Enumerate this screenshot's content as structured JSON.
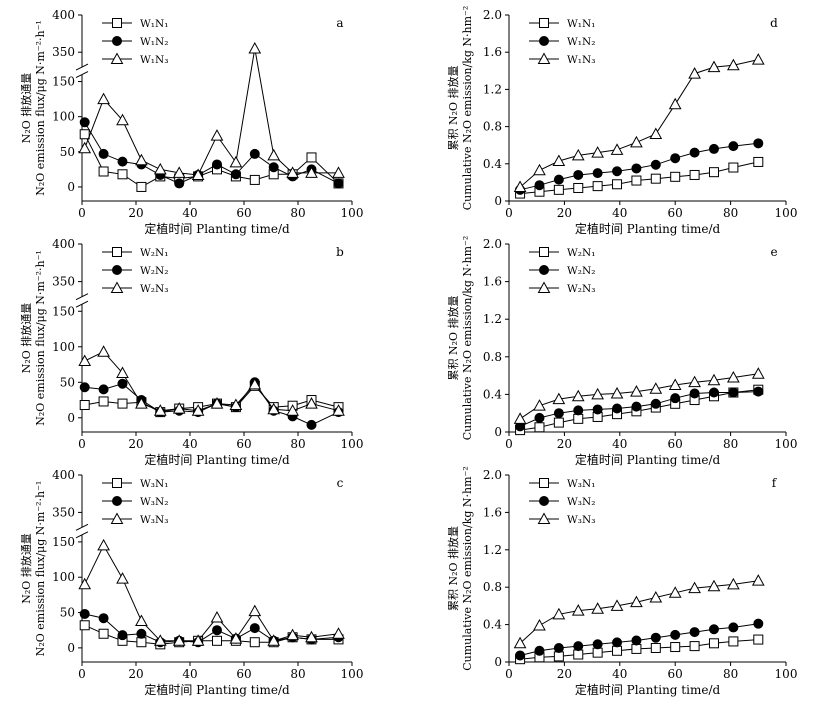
{
  "xlabel": "定植时间 Planting time/d",
  "chart_data": [
    {
      "id": "a",
      "type": "line",
      "tag": "a",
      "ylabel": "N₂O 排放通量",
      "ylabel2": "N₂O emission flux/μg N·m⁻²·h⁻¹",
      "xlim": [
        0,
        100
      ],
      "xticks": [
        0,
        20,
        40,
        60,
        80,
        100
      ],
      "yticks_low": [
        0,
        50,
        100,
        150
      ],
      "yticks_high": [
        350,
        400
      ],
      "broken_axis": true,
      "series": [
        {
          "name": "W₁N₁",
          "marker": "square",
          "x": [
            1,
            8,
            15,
            22,
            29,
            36,
            43,
            50,
            57,
            64,
            71,
            78,
            85,
            95
          ],
          "y": [
            75,
            22,
            18,
            0,
            15,
            12,
            15,
            25,
            15,
            10,
            18,
            18,
            42,
            5
          ]
        },
        {
          "name": "W₁N₂",
          "marker": "circle",
          "x": [
            1,
            8,
            15,
            22,
            29,
            36,
            43,
            50,
            57,
            64,
            71,
            78,
            85,
            95
          ],
          "y": [
            92,
            47,
            36,
            32,
            17,
            5,
            17,
            32,
            18,
            47,
            28,
            15,
            25,
            5
          ]
        },
        {
          "name": "W₁N₃",
          "marker": "triangle",
          "x": [
            1,
            8,
            15,
            22,
            29,
            36,
            43,
            50,
            57,
            64,
            71,
            78,
            85,
            95
          ],
          "y": [
            55,
            125,
            95,
            38,
            25,
            20,
            17,
            73,
            35,
            355,
            45,
            20,
            20,
            20
          ]
        }
      ]
    },
    {
      "id": "b",
      "type": "line",
      "tag": "b",
      "ylabel": "N₂O 排放通量",
      "ylabel2": "N₂O emission flux/μg N·m⁻²·h⁻¹",
      "xlim": [
        0,
        100
      ],
      "xticks": [
        0,
        20,
        40,
        60,
        80,
        100
      ],
      "yticks_low": [
        0,
        50,
        100,
        150
      ],
      "yticks_high": [
        350,
        400
      ],
      "broken_axis": true,
      "series": [
        {
          "name": "W₂N₁",
          "marker": "square",
          "x": [
            1,
            8,
            15,
            22,
            29,
            36,
            43,
            50,
            57,
            64,
            71,
            78,
            85,
            95
          ],
          "y": [
            18,
            23,
            20,
            22,
            8,
            13,
            15,
            20,
            15,
            45,
            15,
            17,
            25,
            15
          ]
        },
        {
          "name": "W₂N₂",
          "marker": "circle",
          "x": [
            1,
            8,
            15,
            22,
            29,
            36,
            43,
            50,
            57,
            64,
            71,
            78,
            85,
            95
          ],
          "y": [
            43,
            40,
            48,
            25,
            8,
            10,
            8,
            20,
            15,
            50,
            10,
            2,
            -10,
            8
          ]
        },
        {
          "name": "W₂N₃",
          "marker": "triangle",
          "x": [
            1,
            8,
            15,
            22,
            29,
            36,
            43,
            50,
            57,
            64,
            71,
            78,
            85,
            95
          ],
          "y": [
            80,
            93,
            63,
            20,
            10,
            13,
            10,
            20,
            18,
            47,
            12,
            10,
            20,
            10
          ]
        }
      ]
    },
    {
      "id": "c",
      "type": "line",
      "tag": "c",
      "ylabel": "N₂O 排放通量",
      "ylabel2": "N₂O emission flux/μg N·m⁻²·h⁻¹",
      "xlim": [
        0,
        100
      ],
      "xticks": [
        0,
        20,
        40,
        60,
        80,
        100
      ],
      "yticks_low": [
        0,
        50,
        100,
        150
      ],
      "yticks_high": [
        350,
        400
      ],
      "broken_axis": true,
      "series": [
        {
          "name": "W₃N₁",
          "marker": "square",
          "x": [
            1,
            8,
            15,
            22,
            29,
            36,
            43,
            50,
            57,
            64,
            71,
            78,
            85,
            95
          ],
          "y": [
            32,
            20,
            10,
            8,
            5,
            8,
            10,
            10,
            10,
            8,
            8,
            15,
            12,
            12
          ]
        },
        {
          "name": "W₃N₂",
          "marker": "circle",
          "x": [
            1,
            8,
            15,
            22,
            29,
            36,
            43,
            50,
            57,
            64,
            71,
            78,
            85,
            95
          ],
          "y": [
            48,
            42,
            18,
            20,
            8,
            10,
            8,
            25,
            13,
            28,
            10,
            15,
            12,
            15
          ]
        },
        {
          "name": "W₃N₃",
          "marker": "triangle",
          "x": [
            1,
            8,
            15,
            22,
            29,
            36,
            43,
            50,
            57,
            64,
            71,
            78,
            85,
            95
          ],
          "y": [
            90,
            145,
            98,
            38,
            10,
            10,
            10,
            43,
            13,
            52,
            10,
            18,
            15,
            20
          ]
        }
      ]
    },
    {
      "id": "d",
      "type": "line",
      "tag": "d",
      "ylabel": "累积 N₂O 排放量",
      "ylabel2": "Cumulative N₂O emission/kg N·hm⁻²",
      "xlim": [
        0,
        100
      ],
      "xticks": [
        0,
        20,
        40,
        60,
        80,
        100
      ],
      "ylim": [
        0,
        2.0
      ],
      "yticks": [
        0,
        0.4,
        0.8,
        1.2,
        1.6,
        2.0
      ],
      "series": [
        {
          "name": "W₁N₁",
          "marker": "square",
          "x": [
            4,
            11,
            18,
            25,
            32,
            39,
            46,
            53,
            60,
            67,
            74,
            81,
            90
          ],
          "y": [
            0.08,
            0.1,
            0.12,
            0.14,
            0.16,
            0.18,
            0.22,
            0.24,
            0.26,
            0.28,
            0.31,
            0.36,
            0.42
          ]
        },
        {
          "name": "W₁N₂",
          "marker": "circle",
          "x": [
            4,
            11,
            18,
            25,
            32,
            39,
            46,
            53,
            60,
            67,
            74,
            81,
            90
          ],
          "y": [
            0.12,
            0.17,
            0.23,
            0.28,
            0.3,
            0.32,
            0.35,
            0.39,
            0.46,
            0.52,
            0.56,
            0.59,
            0.62
          ]
        },
        {
          "name": "W₁N₃",
          "marker": "triangle",
          "x": [
            4,
            11,
            18,
            25,
            32,
            39,
            46,
            53,
            60,
            67,
            74,
            81,
            90
          ],
          "y": [
            0.15,
            0.33,
            0.43,
            0.49,
            0.52,
            0.55,
            0.63,
            0.72,
            1.04,
            1.37,
            1.44,
            1.46,
            1.52
          ]
        }
      ]
    },
    {
      "id": "e",
      "type": "line",
      "tag": "e",
      "ylabel": "累积 N₂O 排放量",
      "ylabel2": "Cumulative N₂O emission/kg N·hm⁻²",
      "xlim": [
        0,
        100
      ],
      "xticks": [
        0,
        20,
        40,
        60,
        80,
        100
      ],
      "ylim": [
        0,
        2.0
      ],
      "yticks": [
        0,
        0.4,
        0.8,
        1.2,
        1.6,
        2.0
      ],
      "series": [
        {
          "name": "W₂N₁",
          "marker": "square",
          "x": [
            4,
            11,
            18,
            25,
            32,
            39,
            46,
            53,
            60,
            67,
            74,
            81,
            90
          ],
          "y": [
            0.02,
            0.05,
            0.1,
            0.14,
            0.16,
            0.19,
            0.22,
            0.26,
            0.3,
            0.34,
            0.38,
            0.42,
            0.45
          ]
        },
        {
          "name": "W₂N₂",
          "marker": "circle",
          "x": [
            4,
            11,
            18,
            25,
            32,
            39,
            46,
            53,
            60,
            67,
            74,
            81,
            90
          ],
          "y": [
            0.06,
            0.15,
            0.2,
            0.23,
            0.24,
            0.25,
            0.27,
            0.3,
            0.36,
            0.41,
            0.42,
            0.42,
            0.43
          ]
        },
        {
          "name": "W₂N₃",
          "marker": "triangle",
          "x": [
            4,
            11,
            18,
            25,
            32,
            39,
            46,
            53,
            60,
            67,
            74,
            81,
            90
          ],
          "y": [
            0.14,
            0.28,
            0.35,
            0.38,
            0.4,
            0.41,
            0.43,
            0.46,
            0.5,
            0.53,
            0.55,
            0.58,
            0.62
          ]
        }
      ]
    },
    {
      "id": "f",
      "type": "line",
      "tag": "f",
      "ylabel": "累积 N₂O 排放量",
      "ylabel2": "Cumulative N₂O emission/kg N·hm⁻²",
      "xlim": [
        0,
        100
      ],
      "xticks": [
        0,
        20,
        40,
        60,
        80,
        100
      ],
      "ylim": [
        0,
        2.0
      ],
      "yticks": [
        0,
        0.4,
        0.8,
        1.2,
        1.6,
        2.0
      ],
      "series": [
        {
          "name": "W₃N₁",
          "marker": "square",
          "x": [
            4,
            11,
            18,
            25,
            32,
            39,
            46,
            53,
            60,
            67,
            74,
            81,
            90
          ],
          "y": [
            0.03,
            0.05,
            0.06,
            0.08,
            0.1,
            0.12,
            0.14,
            0.15,
            0.16,
            0.17,
            0.2,
            0.22,
            0.24
          ]
        },
        {
          "name": "W₃N₂",
          "marker": "circle",
          "x": [
            4,
            11,
            18,
            25,
            32,
            39,
            46,
            53,
            60,
            67,
            74,
            81,
            90
          ],
          "y": [
            0.07,
            0.12,
            0.15,
            0.17,
            0.19,
            0.21,
            0.23,
            0.26,
            0.29,
            0.32,
            0.35,
            0.37,
            0.41
          ]
        },
        {
          "name": "W₃N₃",
          "marker": "triangle",
          "x": [
            4,
            11,
            18,
            25,
            32,
            39,
            46,
            53,
            60,
            67,
            74,
            81,
            90
          ],
          "y": [
            0.2,
            0.39,
            0.51,
            0.55,
            0.57,
            0.6,
            0.64,
            0.69,
            0.74,
            0.79,
            0.81,
            0.83,
            0.87
          ]
        }
      ]
    }
  ]
}
